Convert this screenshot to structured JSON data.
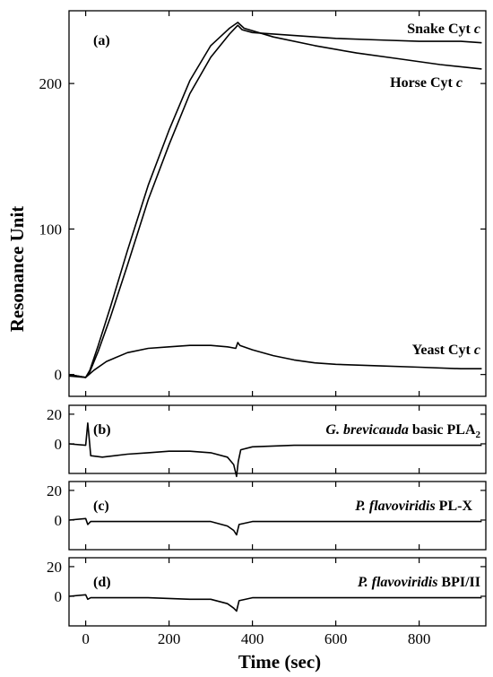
{
  "chart_data": {
    "type": "line",
    "xlabel": "Time (sec)",
    "ylabel": "Resonance Unit",
    "xlim": [
      -40,
      960
    ],
    "xticks": [
      0,
      200,
      400,
      600,
      800
    ],
    "panels": [
      {
        "id": "a",
        "label": "(a)",
        "ylim": [
          -15,
          250
        ],
        "yticks": [
          0,
          100,
          200
        ],
        "series": [
          {
            "name": "Snake Cyt c",
            "name_parts": [
              "Snake Cyt ",
              "c"
            ],
            "points": [
              [
                -40,
                0
              ],
              [
                0,
                -2
              ],
              [
                10,
                2
              ],
              [
                30,
                16
              ],
              [
                60,
                40
              ],
              [
                100,
                75
              ],
              [
                150,
                120
              ],
              [
                200,
                158
              ],
              [
                250,
                193
              ],
              [
                300,
                218
              ],
              [
                345,
                234
              ],
              [
                365,
                240
              ],
              [
                375,
                237
              ],
              [
                400,
                235
              ],
              [
                500,
                233
              ],
              [
                600,
                231
              ],
              [
                700,
                230
              ],
              [
                800,
                229
              ],
              [
                900,
                229
              ],
              [
                950,
                228
              ]
            ]
          },
          {
            "name": "Horse Cyt c",
            "name_parts": [
              "Horse Cyt ",
              "c"
            ],
            "points": [
              [
                -40,
                0
              ],
              [
                0,
                -2
              ],
              [
                10,
                3
              ],
              [
                30,
                20
              ],
              [
                60,
                47
              ],
              [
                100,
                85
              ],
              [
                150,
                130
              ],
              [
                200,
                168
              ],
              [
                250,
                202
              ],
              [
                300,
                226
              ],
              [
                345,
                238
              ],
              [
                365,
                242
              ],
              [
                380,
                238
              ],
              [
                450,
                232
              ],
              [
                550,
                226
              ],
              [
                650,
                221
              ],
              [
                750,
                217
              ],
              [
                850,
                213
              ],
              [
                950,
                210
              ]
            ]
          },
          {
            "name": "Yeast Cyt c",
            "name_parts": [
              "Yeast Cyt ",
              "c"
            ],
            "points": [
              [
                -40,
                -1
              ],
              [
                0,
                -2
              ],
              [
                20,
                3
              ],
              [
                50,
                9
              ],
              [
                100,
                15
              ],
              [
                150,
                18
              ],
              [
                200,
                19
              ],
              [
                250,
                20
              ],
              [
                300,
                20
              ],
              [
                340,
                19
              ],
              [
                360,
                18
              ],
              [
                365,
                22
              ],
              [
                370,
                20
              ],
              [
                400,
                17
              ],
              [
                450,
                13
              ],
              [
                500,
                10
              ],
              [
                550,
                8
              ],
              [
                600,
                7
              ],
              [
                700,
                6
              ],
              [
                800,
                5
              ],
              [
                900,
                4
              ],
              [
                950,
                4
              ]
            ]
          }
        ]
      },
      {
        "id": "b",
        "label": "(b)",
        "ylim": [
          -20,
          26
        ],
        "yticks": [
          0,
          20
        ],
        "series": [
          {
            "name": "G. brevicauda basic PLA2",
            "name_parts": [
              "G. brevicauda",
              " basic PLA",
              "2"
            ],
            "points": [
              [
                -40,
                0
              ],
              [
                0,
                -1
              ],
              [
                5,
                14
              ],
              [
                8,
                5
              ],
              [
                12,
                -8
              ],
              [
                40,
                -9
              ],
              [
                100,
                -7
              ],
              [
                150,
                -6
              ],
              [
                200,
                -5
              ],
              [
                250,
                -5
              ],
              [
                300,
                -6
              ],
              [
                340,
                -9
              ],
              [
                355,
                -14
              ],
              [
                362,
                -22
              ],
              [
                366,
                -12
              ],
              [
                372,
                -4
              ],
              [
                400,
                -2
              ],
              [
                500,
                -1
              ],
              [
                600,
                -1
              ],
              [
                700,
                -1
              ],
              [
                800,
                -1
              ],
              [
                900,
                -1
              ],
              [
                950,
                -1
              ]
            ]
          }
        ]
      },
      {
        "id": "c",
        "label": "(c)",
        "ylim": [
          -20,
          26
        ],
        "yticks": [
          0,
          20
        ],
        "series": [
          {
            "name": "P. flavoviridis PL-X",
            "name_parts": [
              "P. flavoviridis",
              " PL-X"
            ],
            "points": [
              [
                -40,
                0
              ],
              [
                0,
                1
              ],
              [
                5,
                -3
              ],
              [
                12,
                -1
              ],
              [
                50,
                -1
              ],
              [
                150,
                -1
              ],
              [
                250,
                -1
              ],
              [
                300,
                -1
              ],
              [
                340,
                -4
              ],
              [
                355,
                -7
              ],
              [
                362,
                -10
              ],
              [
                368,
                -3
              ],
              [
                400,
                -1
              ],
              [
                500,
                -1
              ],
              [
                700,
                -1
              ],
              [
                900,
                -1
              ],
              [
                950,
                -1
              ]
            ]
          }
        ]
      },
      {
        "id": "d",
        "label": "(d)",
        "ylim": [
          -20,
          26
        ],
        "yticks": [
          0,
          20
        ],
        "series": [
          {
            "name": "P. flavoviridis BPI/II",
            "name_parts": [
              "P. flavoviridis",
              " BPI/II"
            ],
            "points": [
              [
                -40,
                0
              ],
              [
                0,
                1
              ],
              [
                5,
                -2
              ],
              [
                12,
                -1
              ],
              [
                50,
                -1
              ],
              [
                150,
                -1
              ],
              [
                250,
                -2
              ],
              [
                300,
                -2
              ],
              [
                340,
                -5
              ],
              [
                355,
                -8
              ],
              [
                362,
                -10
              ],
              [
                368,
                -3
              ],
              [
                400,
                -1
              ],
              [
                500,
                -1
              ],
              [
                700,
                -1
              ],
              [
                900,
                -1
              ],
              [
                950,
                -1
              ]
            ]
          }
        ]
      }
    ]
  }
}
